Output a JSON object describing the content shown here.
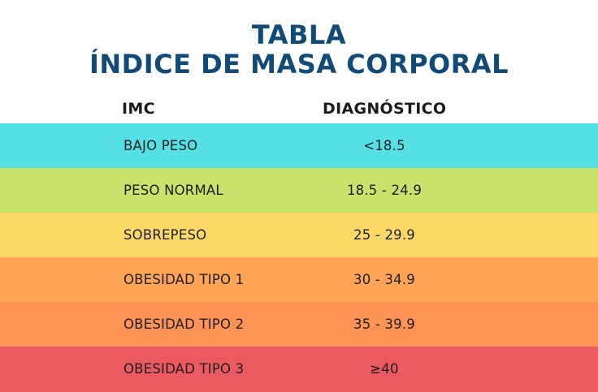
{
  "title": {
    "line1": "TABLA",
    "line2": "ÍNDICE DE MASA CORPORAL"
  },
  "table": {
    "headers": [
      "IMC",
      "DIAGNÓSTICO"
    ],
    "rows": [
      {
        "label": "BAJO PESO",
        "range": "<18.5",
        "color": "#54e0e4"
      },
      {
        "label": "PESO NORMAL",
        "range": "18.5 - 24.9",
        "color": "#c9e26c"
      },
      {
        "label": "SOBREPESO",
        "range": "25 - 29.9",
        "color": "#fcd967"
      },
      {
        "label": "OBESIDAD TIPO 1",
        "range": "30 - 34.9",
        "color": "#fda457"
      },
      {
        "label": "OBESIDAD TIPO 2",
        "range": "35 - 39.9",
        "color": "#fd9355"
      },
      {
        "label": "OBESIDAD TIPO 3",
        "range": "≥40",
        "color": "#eb5a61"
      }
    ]
  },
  "colors": {
    "title": "#0f4a78",
    "text": "#1e1e1e",
    "background": "#ffffff"
  }
}
